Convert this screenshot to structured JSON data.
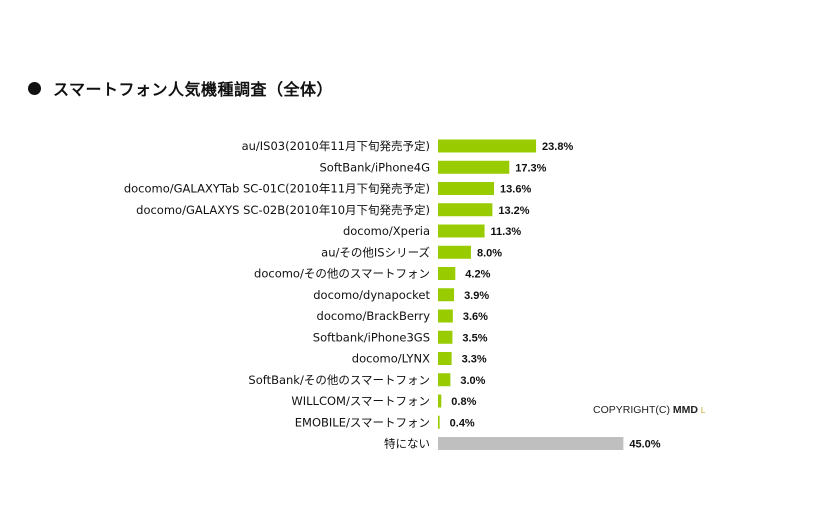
{
  "title": "スマートフォン人気機種調査（全体）",
  "copyright": {
    "prefix": "COPYRIGHT(C)",
    "brand": "MMD",
    "suffix": "L"
  },
  "colors": {
    "primary": "#99cc00",
    "none": "#bfbfbf"
  },
  "chart_data": {
    "type": "bar",
    "orientation": "horizontal",
    "title": "スマートフォン人気機種調査（全体）",
    "categories": [
      "au/IS03(2010年11月下旬発売予定)",
      "SoftBank/iPhone4G",
      "docomo/GALAXYTab SC-01C(2010年11月下旬発売予定)",
      "docomo/GALAXYS SC-02B(2010年10月下旬発売予定)",
      "docomo/Xperia",
      "au/その他ISシリーズ",
      "docomo/その他のスマートフォン",
      "docomo/dynapocket",
      "docomo/BrackBerry",
      "Softbank/iPhone3GS",
      "docomo/LYNX",
      "SoftBank/その他のスマートフォン",
      "WILLCOM/スマートフォン",
      "EMOBILE/スマートフォン",
      "特にない"
    ],
    "values": [
      23.8,
      17.3,
      13.6,
      13.2,
      11.3,
      8.0,
      4.2,
      3.9,
      3.6,
      3.5,
      3.3,
      3.0,
      0.8,
      0.4,
      45.0
    ],
    "value_labels": [
      "23.8%",
      "17.3%",
      "13.6%",
      "13.2%",
      "11.3%",
      "8.0%",
      "4.2%",
      "3.9%",
      "3.6%",
      "3.5%",
      "3.3%",
      "3.0%",
      "0.8%",
      "0.4%",
      "45.0%"
    ],
    "highlight_last_gray": true,
    "unit": "%",
    "grid": false,
    "legend": "none"
  }
}
